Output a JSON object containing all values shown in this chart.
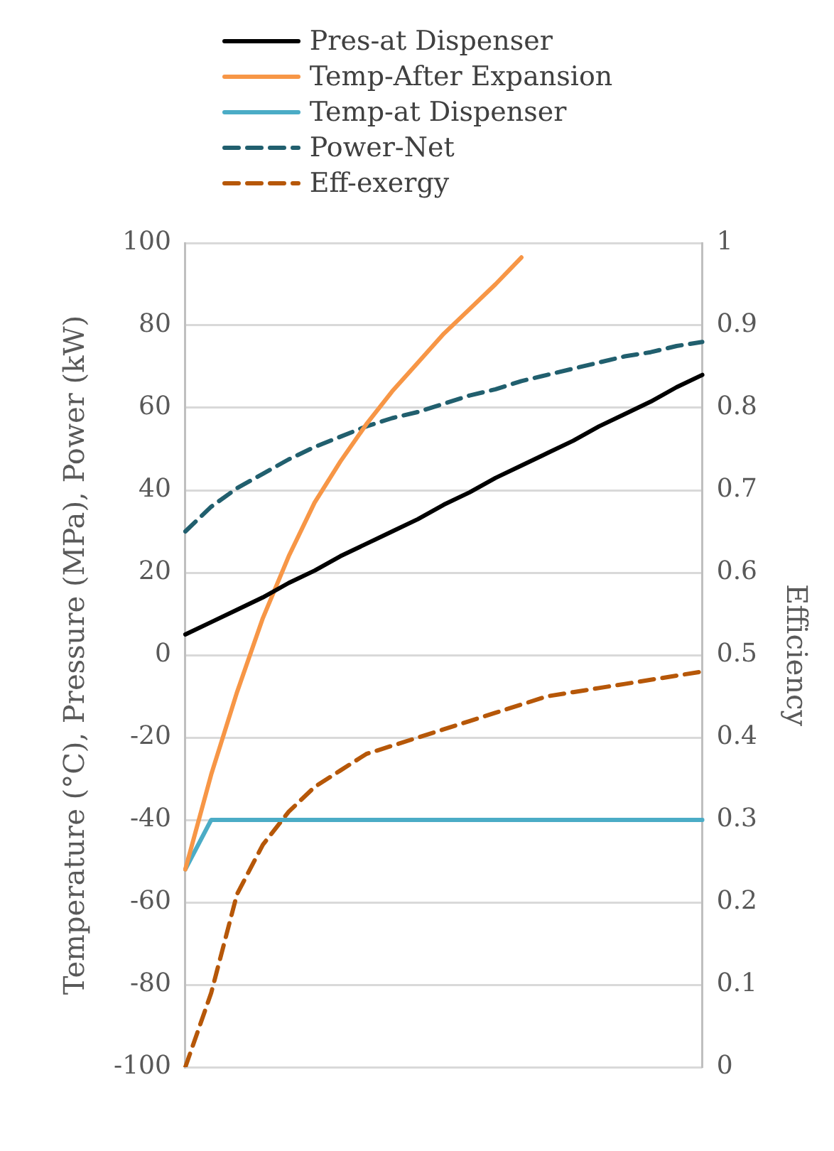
{
  "chart_data": {
    "type": "line",
    "ylabel": "Temperature (°C), Pressure (MPa), Power (kW)",
    "y2label": "Efficiency",
    "categories": [
      null,
      null,
      null,
      null,
      null,
      null,
      null,
      null,
      null,
      null,
      null,
      null,
      null,
      null,
      null,
      null,
      null,
      null,
      null,
      null,
      null
    ],
    "series": [
      {
        "name": "Pres-at Dispenser",
        "color": "#000000",
        "line_style": "solid",
        "values": [
          5,
          8,
          11,
          14,
          17.5,
          20.5,
          24,
          27,
          30,
          33,
          36.5,
          39.5,
          43,
          46,
          49,
          52,
          55.5,
          58.5,
          61.5,
          65,
          68
        ]
      },
      {
        "name": "Temp-After Expansion",
        "color": "#f79646",
        "line_style": "solid",
        "values": [
          -52,
          -29,
          -9,
          9,
          24,
          37,
          47,
          56,
          64,
          71,
          78,
          84,
          90,
          96.5,
          null,
          null,
          null,
          null,
          null,
          null,
          null
        ]
      },
      {
        "name": "Temp-at Dispenser",
        "color": "#4bacc6",
        "line_style": "solid",
        "values": [
          -52,
          -40,
          -40,
          -40,
          -40,
          -40,
          -40,
          -40,
          -40,
          -40,
          -40,
          -40,
          -40,
          -40,
          -40,
          -40,
          -40,
          -40,
          -40,
          -40,
          -40
        ]
      },
      {
        "name": "Power-Net",
        "color": "#215f6e",
        "line_style": "dashed",
        "values": [
          30,
          36,
          40.5,
          44,
          47.5,
          50.5,
          53,
          55.5,
          57.5,
          59,
          61,
          63,
          64.5,
          66.5,
          68,
          69.5,
          71,
          72.5,
          73.5,
          75,
          76
        ]
      },
      {
        "name": "Eff-exergy",
        "color": "#b65708",
        "line_style": "dashed",
        "axis": "y2",
        "values": [
          0,
          0.09,
          0.21,
          0.27,
          0.31,
          0.34,
          0.36,
          0.38,
          0.39,
          0.4,
          0.41,
          0.42,
          0.43,
          0.44,
          0.45,
          0.455,
          0.46,
          0.465,
          0.47,
          0.475,
          0.48
        ]
      }
    ],
    "ylim": [
      -100,
      100
    ],
    "yticks": [
      -100,
      -80,
      -60,
      -40,
      -20,
      0,
      20,
      40,
      60,
      80,
      100
    ],
    "y2lim": [
      0,
      1
    ],
    "y2ticks": [
      0,
      0.1,
      0.2,
      0.3,
      0.4,
      0.5,
      0.6,
      0.7,
      0.8,
      0.9,
      1
    ],
    "grid": "y",
    "legend": "top",
    "marker": "none"
  }
}
